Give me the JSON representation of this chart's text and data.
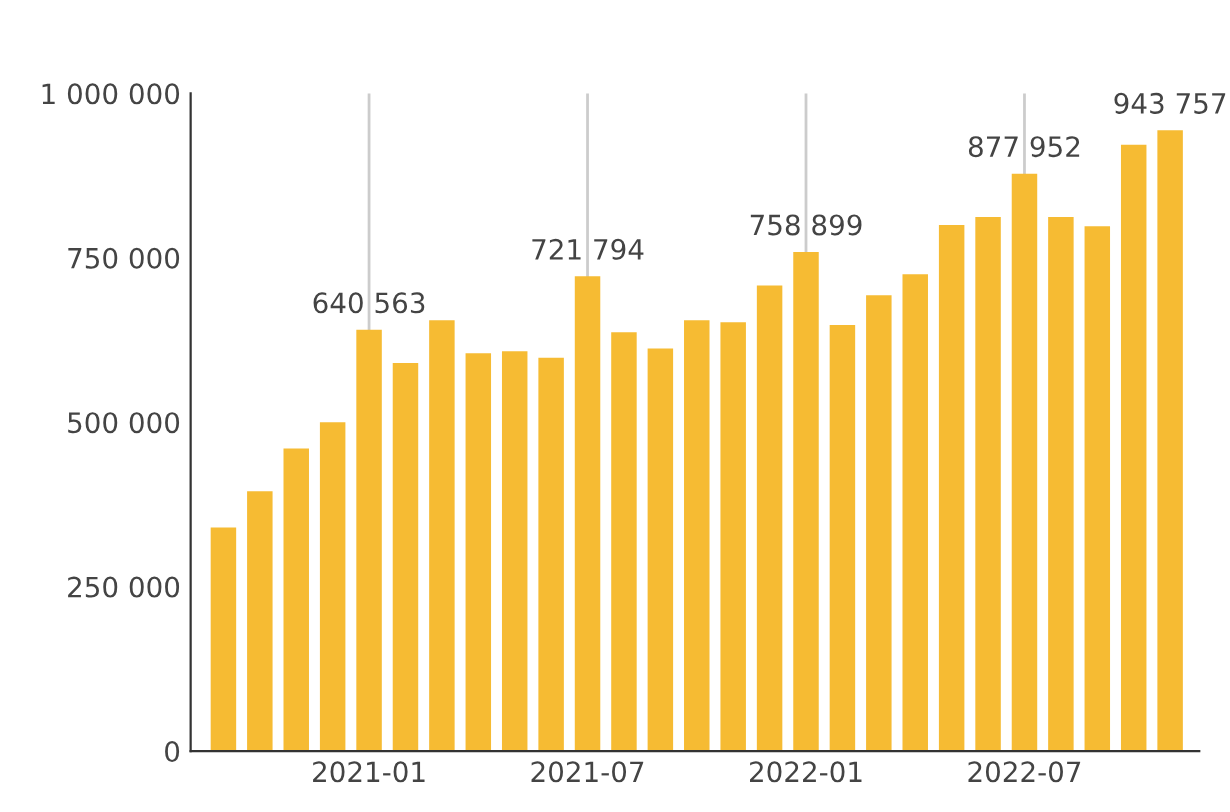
{
  "chart_data": {
    "type": "bar",
    "categories": [
      null,
      null,
      null,
      null,
      "2021-01",
      null,
      null,
      null,
      null,
      null,
      "2021-07",
      null,
      null,
      null,
      null,
      null,
      "2022-01",
      null,
      null,
      null,
      null,
      null,
      "2022-07",
      null,
      null,
      null,
      null
    ],
    "values": [
      340000,
      395000,
      460000,
      500000,
      640563,
      590000,
      655000,
      605000,
      608000,
      598000,
      721794,
      637000,
      612000,
      655000,
      652000,
      708000,
      758899,
      648000,
      693000,
      725000,
      800000,
      812000,
      877952,
      812000,
      798000,
      922000,
      943757
    ],
    "value_labels": [
      null,
      null,
      null,
      null,
      "640 563",
      null,
      null,
      null,
      null,
      null,
      "721 794",
      null,
      null,
      null,
      null,
      null,
      "758 899",
      null,
      null,
      null,
      null,
      null,
      "877 952",
      null,
      null,
      null,
      "943 757"
    ],
    "color": "#f6bb33",
    "ylim": [
      0,
      1000000
    ],
    "yticks": [
      0,
      {
        "value": 250000,
        "label": "250 000"
      },
      {
        "value": 500000,
        "label": "500 000"
      },
      {
        "value": 750000,
        "label": "750 000"
      },
      {
        "value": 1000000,
        "label": "1 000 000"
      }
    ],
    "grid": "x"
  }
}
